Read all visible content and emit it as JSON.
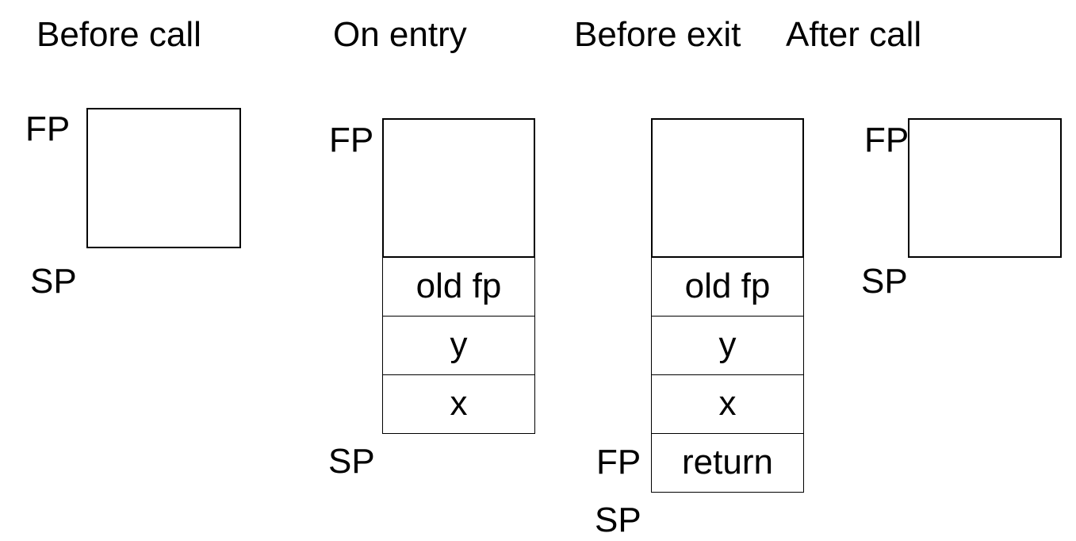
{
  "columns": {
    "before_call": {
      "title": "Before call",
      "fp_label": "FP",
      "sp_label": "SP"
    },
    "on_entry": {
      "title": "On entry",
      "fp_label": "FP",
      "sp_label": "SP",
      "cells": [
        "old fp",
        "y",
        "x"
      ]
    },
    "before_exit": {
      "title": "Before exit",
      "fp_label": "FP",
      "sp_label": "SP",
      "cells": [
        "old fp",
        "y",
        "x",
        "return"
      ]
    },
    "after_call": {
      "title": "After call",
      "fp_label": "FP",
      "sp_label": "SP"
    }
  }
}
